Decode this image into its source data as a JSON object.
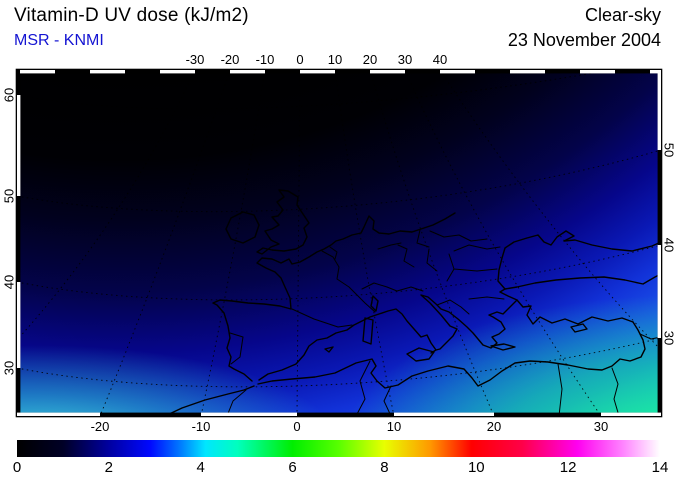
{
  "header": {
    "title": "Vitamin-D UV dose (kJ/m2)",
    "subtitle": "MSR - KNMI",
    "subtitle_color": "#1414d2",
    "condition": "Clear-sky",
    "date": "23 November 2004"
  },
  "chart_data": {
    "type": "heatmap",
    "title": "Vitamin-D UV dose (kJ/m2)",
    "variable": "Vitamin-D weighted UV dose",
    "units": "kJ/m2",
    "condition": "Clear-sky",
    "date": "23 November 2004",
    "provider": "MSR - KNMI",
    "region": "Europe and Mediterranean",
    "axes": {
      "top_longitude_ticks": [
        "-30",
        "-20",
        "-10",
        "0",
        "10",
        "20",
        "30",
        "40"
      ],
      "bottom_longitude_ticks": [
        "-20",
        "-10",
        "0",
        "10",
        "20",
        "30"
      ],
      "left_latitude_ticks": [
        "60",
        "50",
        "40",
        "30"
      ],
      "right_latitude_ticks": [
        "50",
        "40",
        "30"
      ],
      "graticule": "dotted lat/lon grid lines every 10 degrees"
    },
    "colorbar": {
      "min": 0,
      "max": 14,
      "tick_labels": [
        "0",
        "2",
        "4",
        "6",
        "8",
        "10",
        "12",
        "14"
      ],
      "gradient_stops": [
        {
          "value": 0,
          "color": "#000000"
        },
        {
          "value": 1,
          "color": "#000026"
        },
        {
          "value": 2,
          "color": "#0000a0"
        },
        {
          "value": 2.9,
          "color": "#0008ff"
        },
        {
          "value": 3.5,
          "color": "#0070ff"
        },
        {
          "value": 4.1,
          "color": "#00e6ff"
        },
        {
          "value": 4.8,
          "color": "#00ffbe"
        },
        {
          "value": 6,
          "color": "#00ee00"
        },
        {
          "value": 7,
          "color": "#58ff00"
        },
        {
          "value": 8,
          "color": "#e8ff00"
        },
        {
          "value": 9,
          "color": "#ff9800"
        },
        {
          "value": 9.9,
          "color": "#ff0000"
        },
        {
          "value": 11,
          "color": "#ff0048"
        },
        {
          "value": 12.2,
          "color": "#ff00f0"
        },
        {
          "value": 13.2,
          "color": "#ff85ff"
        },
        {
          "value": 14,
          "color": "#ffffff"
        }
      ]
    },
    "field_summary": {
      "north_min_approx": 0,
      "southeast_max_approx": 6,
      "pattern": "dose increases from ~0 kJ/m2 (black) in the north to ~5-6 kJ/m2 (cyan/green) along the southern edge; brightest green in the south-east corner"
    }
  }
}
